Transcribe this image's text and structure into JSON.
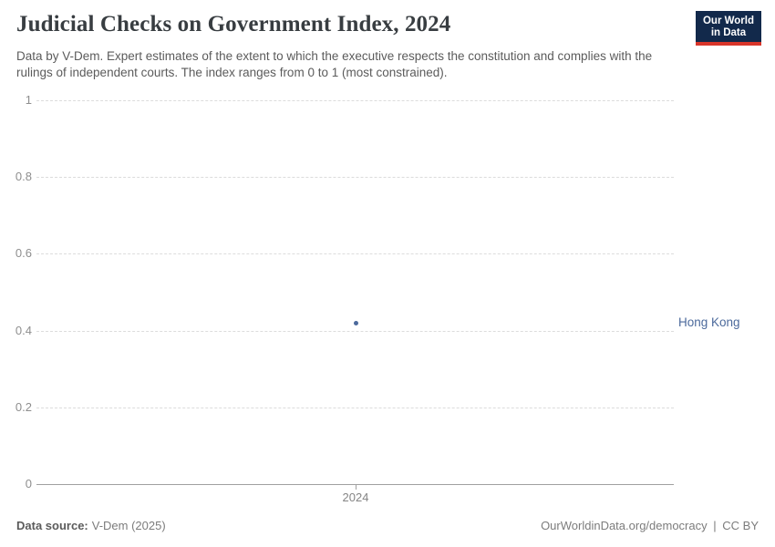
{
  "header": {
    "title": "Judicial Checks on Government Index, 2024",
    "subtitle": "Data by V-Dem. Expert estimates of the extent to which the executive respects the constitution and complies with the rulings of independent courts. The index ranges from 0 to 1 (most constrained).",
    "logo": {
      "line1": "Our World",
      "line2": "in Data"
    }
  },
  "chart_data": {
    "type": "scatter",
    "title": "Judicial Checks on Government Index, 2024",
    "x": [
      2024
    ],
    "xtick_labels": [
      "2024"
    ],
    "series": [
      {
        "name": "Hong Kong",
        "values": [
          0.42
        ],
        "color": "#4c6a9c"
      }
    ],
    "ylim": [
      0,
      1
    ],
    "yticks": [
      0,
      0.2,
      0.4,
      0.6,
      0.8,
      1
    ],
    "ytick_labels": [
      "0",
      "0.2",
      "0.4",
      "0.6",
      "0.8",
      "1"
    ],
    "xlabel": "",
    "ylabel": "",
    "grid": true,
    "grid_style": "dashed",
    "legend_position": "entity label right of plot",
    "annotations": [
      {
        "text": "Hong Kong",
        "y": 0.42,
        "position": "right-of-plot"
      }
    ]
  },
  "colors": {
    "accent_blue": "#4c6a9c",
    "logo_background": "#12294b",
    "logo_red": "#d8352a",
    "gridline": "#dcdcdc",
    "axis": "#a1a1a1",
    "title_text": "#383d41",
    "body_text": "#5b5b5b",
    "tick_text": "#8e8e8e"
  },
  "footer": {
    "source_label": "Data source:",
    "source_value": "V-Dem (2025)",
    "link": "OurWorldinData.org/democracy",
    "separator": "|",
    "license": "CC BY"
  }
}
